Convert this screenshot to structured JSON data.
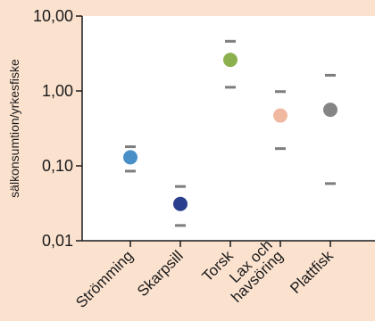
{
  "chart_data": {
    "type": "scatter",
    "subtype": "dot-with-range",
    "ylabel": "sälkonsumtion/yrkesfiske",
    "yscale": "log",
    "ylim": [
      0.01,
      10
    ],
    "yticks": [
      {
        "value": 0.01,
        "label": "0,01"
      },
      {
        "value": 0.1,
        "label": "0,10"
      },
      {
        "value": 1,
        "label": "1,00"
      },
      {
        "value": 10,
        "label": "10,00"
      }
    ],
    "grid": false,
    "legend": "none",
    "categories": [
      {
        "label": [
          "Strömming"
        ],
        "value": 0.13,
        "low": 0.085,
        "high": 0.18,
        "color": "#4a90c8"
      },
      {
        "label": [
          "Skarpsill"
        ],
        "value": 0.031,
        "low": 0.016,
        "high": 0.053,
        "color": "#2b3f8f"
      },
      {
        "label": [
          "Torsk"
        ],
        "value": 2.6,
        "low": 1.12,
        "high": 4.6,
        "color": "#8db04e"
      },
      {
        "label": [
          "Lax och",
          "havsöring"
        ],
        "value": 0.47,
        "low": 0.17,
        "high": 0.98,
        "color": "#f0b8a0"
      },
      {
        "label": [
          "Plattfisk"
        ],
        "value": 0.56,
        "low": 0.058,
        "high": 1.62,
        "color": "#858585"
      }
    ]
  }
}
